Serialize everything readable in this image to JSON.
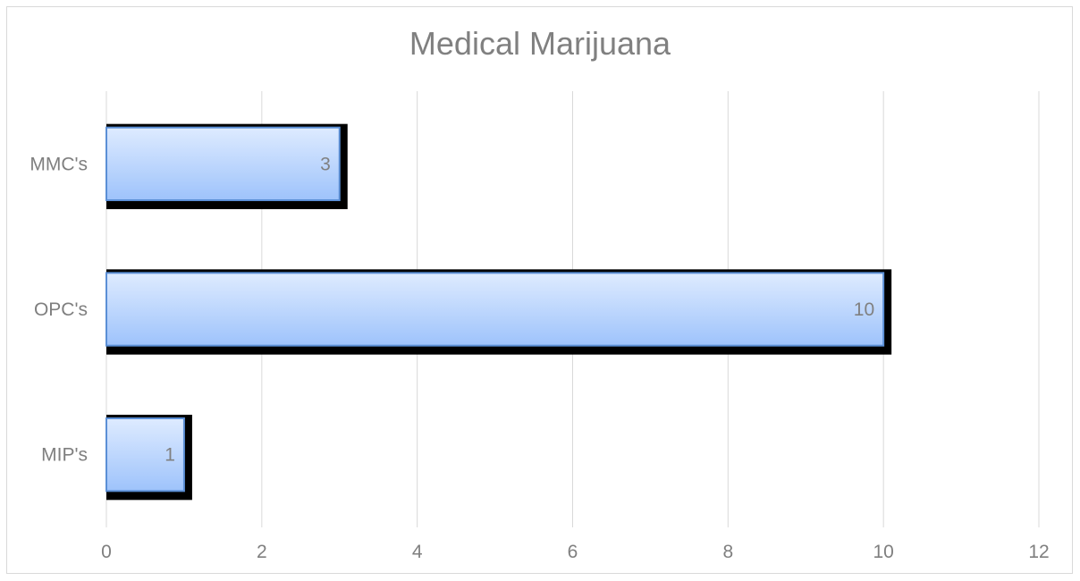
{
  "chart_data": {
    "type": "bar",
    "orientation": "horizontal",
    "title": "Medical Marijuana",
    "xlabel": "",
    "ylabel": "",
    "categories": [
      "MIP's",
      "OPC's",
      "MMC's"
    ],
    "values": [
      1,
      10,
      3
    ],
    "xlim": [
      0,
      12
    ],
    "xticks": [
      0,
      2,
      4,
      6,
      8,
      10,
      12
    ],
    "grid": "vertical",
    "legend": "none",
    "data_labels": true,
    "colors": {
      "bar_top": "#deebff",
      "bar_bottom": "#9ec3fb",
      "bar_border": "#5b8fd6",
      "bar_shadow": "#000000",
      "grid": "#d9d9d9",
      "text": "#7f7f7f"
    }
  }
}
